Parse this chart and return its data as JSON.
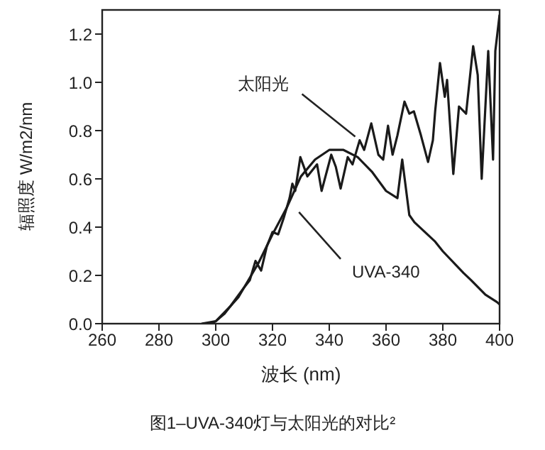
{
  "chart_data": {
    "type": "line",
    "title": "图1–UVA-340灯与太阳光的对比²",
    "xlabel": "波长 (nm)",
    "ylabel": "辐照度 W/m2/nm",
    "xlim": [
      260,
      400
    ],
    "xticks": [
      260,
      280,
      300,
      320,
      340,
      360,
      380,
      400
    ],
    "ylim": [
      0,
      1.3
    ],
    "yticks": [
      {
        "value": 0,
        "label": "0.0"
      },
      0.2,
      0.4,
      0.6,
      0.8,
      {
        "value": 1,
        "label": "1.0"
      },
      1.2
    ],
    "grid": false,
    "marker": "none",
    "line_style": "solid",
    "annotations": [
      {
        "text": "太阳光",
        "x": 350.7,
        "y": 0.76
      },
      {
        "text": "UVA-340",
        "x": 328,
        "y": 0.48
      }
    ],
    "series": [
      {
        "color": "#1a1a1a",
        "x": [
          295,
          300,
          303,
          305,
          308,
          310,
          312,
          314,
          316,
          318,
          320,
          322,
          324,
          326,
          327,
          328,
          329.8,
          332.3,
          335.7,
          337.3,
          340.7,
          342.3,
          344,
          346.5,
          348.2,
          350.7,
          352.3,
          354.8,
          357.3,
          359,
          360.7,
          362.3,
          364,
          366.5,
          368.2,
          369.8,
          372.3,
          374.8,
          376.5,
          377.3,
          379,
          380.7,
          381.5,
          383.7,
          385.7,
          388.2,
          390.7,
          392.3,
          393.7,
          396,
          397.7,
          398.5,
          400
        ],
        "values": [
          0,
          0.01,
          0.04,
          0.07,
          0.11,
          0.15,
          0.18,
          0.26,
          0.22,
          0.32,
          0.38,
          0.37,
          0.44,
          0.52,
          0.58,
          0.55,
          0.69,
          0.61,
          0.66,
          0.55,
          0.7,
          0.65,
          0.56,
          0.69,
          0.66,
          0.76,
          0.72,
          0.83,
          0.7,
          0.68,
          0.82,
          0.7,
          0.78,
          0.92,
          0.87,
          0.88,
          0.78,
          0.67,
          0.76,
          0.88,
          1.08,
          0.94,
          1.01,
          0.62,
          0.9,
          0.87,
          1.15,
          1.03,
          0.6,
          1.13,
          0.68,
          1.13,
          1.28
        ]
      },
      {
        "color": "#1a1a1a",
        "x": [
          298,
          300,
          305,
          310,
          315,
          320,
          325,
          330,
          335,
          340,
          345,
          350,
          355,
          360,
          364,
          365.7,
          368.2,
          370,
          377.3,
          380,
          387.3,
          390,
          395,
          399,
          400
        ],
        "values": [
          0,
          0.01,
          0.07,
          0.15,
          0.25,
          0.37,
          0.48,
          0.61,
          0.68,
          0.72,
          0.72,
          0.69,
          0.63,
          0.55,
          0.52,
          0.68,
          0.45,
          0.42,
          0.34,
          0.3,
          0.21,
          0.18,
          0.12,
          0.09,
          0.08
        ]
      }
    ]
  }
}
